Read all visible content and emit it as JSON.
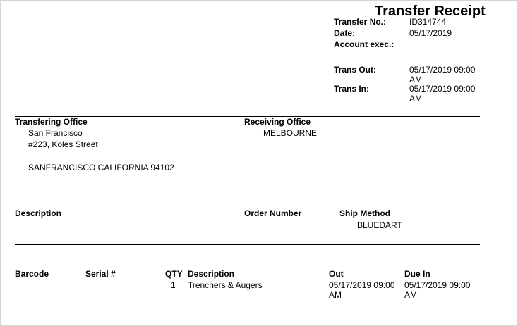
{
  "title": "Transfer Receipt",
  "header": {
    "transfer_no_label": "Transfer No.:",
    "transfer_no": "ID314744",
    "date_label": "Date:",
    "date": "05/17/2019",
    "account_exec_label": "Account exec.:",
    "trans_out_label": "Trans Out:",
    "trans_out": "05/17/2019 09:00 AM",
    "trans_in_label": "Trans In:",
    "trans_in": "05/17/2019 09:00 AM"
  },
  "transfering_office": {
    "label": "Transfering Office",
    "line1": "San Francisco",
    "line2": "#223, Koles Street",
    "line3": "SANFRANCISCO CALIFORNIA 94102"
  },
  "receiving_office": {
    "label": "Receiving Office",
    "line1": "MELBOURNE"
  },
  "order": {
    "description_label": "Description",
    "order_number_label": "Order Number",
    "ship_method_label": "Ship Method",
    "ship_method": "BLUEDART"
  },
  "items": {
    "columns": [
      "Barcode",
      "Serial #",
      "QTY",
      "Description",
      "Out",
      "Due In"
    ],
    "rows": [
      {
        "barcode": "",
        "serial": "",
        "qty": "1",
        "description": "Trenchers & Augers",
        "out": "05/17/2019 09:00 AM",
        "due_in": "05/17/2019 09:00 AM"
      }
    ]
  }
}
